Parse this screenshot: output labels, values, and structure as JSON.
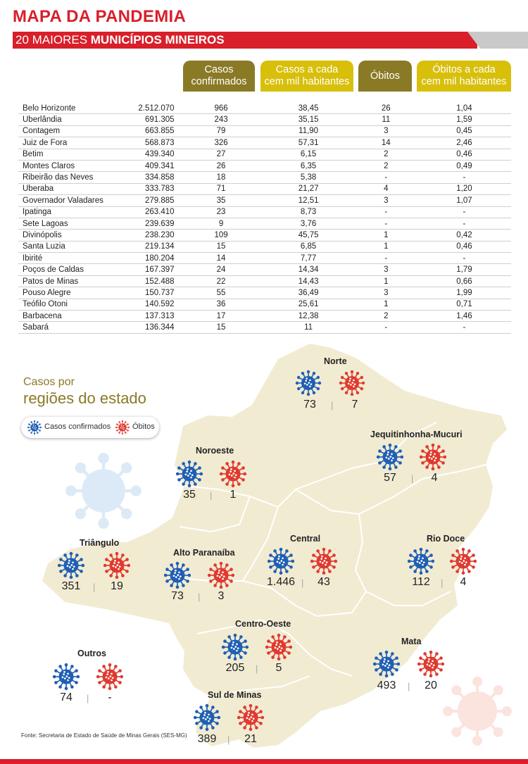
{
  "header": {
    "title": "MAPA DA PANDEMIA",
    "subtitle_normal": "20 MAIORES ",
    "subtitle_bold": "MUNICÍPIOS MINEIROS"
  },
  "table": {
    "headers": [
      [
        "Casos",
        "confirmados"
      ],
      [
        "Casos a cada",
        "cem mil habitantes"
      ],
      [
        "Óbitos",
        ""
      ],
      [
        "Óbitos a cada",
        "cem mil habitantes"
      ]
    ],
    "rows": [
      [
        "Belo Horizonte",
        "2.512.070",
        "966",
        "38,45",
        "26",
        "1,04"
      ],
      [
        "Uberlândia",
        "691.305",
        "243",
        "35,15",
        "11",
        "1,59"
      ],
      [
        "Contagem",
        "663.855",
        "79",
        "11,90",
        "3",
        "0,45"
      ],
      [
        "Juiz de Fora",
        "568.873",
        "326",
        "57,31",
        "14",
        "2,46"
      ],
      [
        "Betim",
        "439.340",
        "27",
        "6,15",
        "2",
        "0,46"
      ],
      [
        "Montes Claros",
        "409.341",
        "26",
        "6,35",
        "2",
        "0,49"
      ],
      [
        "Ribeirão das Neves",
        "334.858",
        "18",
        "5,38",
        "-",
        "-"
      ],
      [
        "Uberaba",
        "333.783",
        "71",
        "21,27",
        "4",
        "1,20"
      ],
      [
        "Governador Valadares",
        "279.885",
        "35",
        "12,51",
        "3",
        "1,07"
      ],
      [
        "Ipatinga",
        "263.410",
        "23",
        "8,73",
        "-",
        "-"
      ],
      [
        "Sete Lagoas",
        "239.639",
        "9",
        "3,76",
        "-",
        "-"
      ],
      [
        "Divinópolis",
        "238.230",
        "109",
        "45,75",
        "1",
        "0,42"
      ],
      [
        "Santa Luzia",
        "219.134",
        "15",
        "6,85",
        "1",
        "0,46"
      ],
      [
        "Ibirité",
        "180.204",
        "14",
        "7,77",
        "-",
        "-"
      ],
      [
        "Poços de Caldas",
        "167.397",
        "24",
        "14,34",
        "3",
        "1,79"
      ],
      [
        "Patos de Minas",
        "152.488",
        "22",
        "14,43",
        "1",
        "0,66"
      ],
      [
        "Pouso Alegre",
        "150.737",
        "55",
        "36,49",
        "3",
        "1,99"
      ],
      [
        "Teófilo Otoni",
        "140.592",
        "36",
        "25,61",
        "1",
        "0,71"
      ],
      [
        "Barbacena",
        "137.313",
        "17",
        "12,38",
        "2",
        "1,46"
      ],
      [
        "Sabará",
        "136.344",
        "15",
        "11",
        "-",
        "-"
      ]
    ]
  },
  "map": {
    "legend_title_line1": "Casos por",
    "legend_title_line2": "regiões do estado",
    "legend_cases": "Casos confirmados",
    "legend_deaths": "Óbitos",
    "regions": [
      {
        "name": "Norte",
        "cases": "73",
        "deaths": "7"
      },
      {
        "name": "Jequitinhonha-Mucuri",
        "cases": "57",
        "deaths": "4"
      },
      {
        "name": "Noroeste",
        "cases": "35",
        "deaths": "1"
      },
      {
        "name": "Triângulo",
        "cases": "351",
        "deaths": "19"
      },
      {
        "name": "Alto Paranaíba",
        "cases": "73",
        "deaths": "3"
      },
      {
        "name": "Central",
        "cases": "1.446",
        "deaths": "43"
      },
      {
        "name": "Rio Doce",
        "cases": "112",
        "deaths": "4"
      },
      {
        "name": "Centro-Oeste",
        "cases": "205",
        "deaths": "5"
      },
      {
        "name": "Outros",
        "cases": "74",
        "deaths": "-"
      },
      {
        "name": "Mata",
        "cases": "493",
        "deaths": "20"
      },
      {
        "name": "Sul de Minas",
        "cases": "389",
        "deaths": "21"
      }
    ],
    "source": "Fonte: Secretaria de Estado de Saúde de Minas Gerais (SES-MG)"
  },
  "colors": {
    "brand_red": "#d81f2a",
    "olive": "#8a7a26",
    "gold": "#d8bf0a",
    "cases_blue": "#1f5fb4",
    "deaths_red": "#e03a2f",
    "map_fill": "#f1ebd2"
  },
  "icons": [
    "virus-blue-icon",
    "virus-red-icon"
  ]
}
